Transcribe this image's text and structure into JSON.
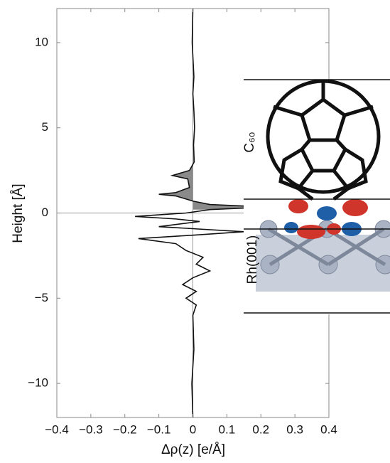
{
  "chart_data": {
    "type": "line",
    "xlabel": "Δρ(z) [e/Å]",
    "ylabel": "Height [Å]",
    "xlim": [
      -0.4,
      0.4
    ],
    "xticks": [
      {
        "value": -0.4,
        "label": "−0.4"
      },
      {
        "value": -0.3,
        "label": "−0.3"
      },
      {
        "value": -0.2,
        "label": "−0.2"
      },
      {
        "value": -0.1,
        "label": "−0.1"
      },
      0,
      0.1,
      0.2,
      0.3,
      0.4
    ],
    "ylim": [
      -12,
      12
    ],
    "yticks": [
      {
        "value": -10,
        "label": "−10"
      },
      {
        "value": -5,
        "label": "−5"
      },
      0,
      5,
      10
    ],
    "color": "#111111",
    "fill_color": "#8a8a8a",
    "x": [
      0,
      -0.002,
      0.003,
      0,
      0.003,
      0.005,
      0.002,
      0.004,
      -0.01,
      -0.06,
      -0.015,
      -0.01,
      -0.05,
      -0.1,
      -0.05,
      0,
      0.05,
      0.22,
      0.05,
      -0.02,
      -0.17,
      -0.05,
      0.02,
      -0.1,
      0.15,
      0,
      -0.16,
      -0.05,
      -0.02,
      0.03,
      0.01,
      0.05,
      0,
      -0.03,
      0.01,
      -0.02,
      0.01,
      0,
      0.003,
      -0.003,
      0
    ],
    "y": [
      12,
      10,
      8,
      7,
      6,
      5,
      4,
      3,
      2.5,
      2.2,
      2,
      1.5,
      1.2,
      1.1,
      1,
      0.7,
      0.5,
      0.35,
      0.2,
      0,
      -0.2,
      -0.35,
      -0.5,
      -0.8,
      -1.1,
      -1.3,
      -1.5,
      -1.8,
      -2.2,
      -2.6,
      -3,
      -3.4,
      -3.8,
      -4.2,
      -4.6,
      -5,
      -5.4,
      -6,
      -8,
      -10,
      -12
    ],
    "inset_labels": [
      "C₆₀",
      "Rh(001)"
    ]
  }
}
